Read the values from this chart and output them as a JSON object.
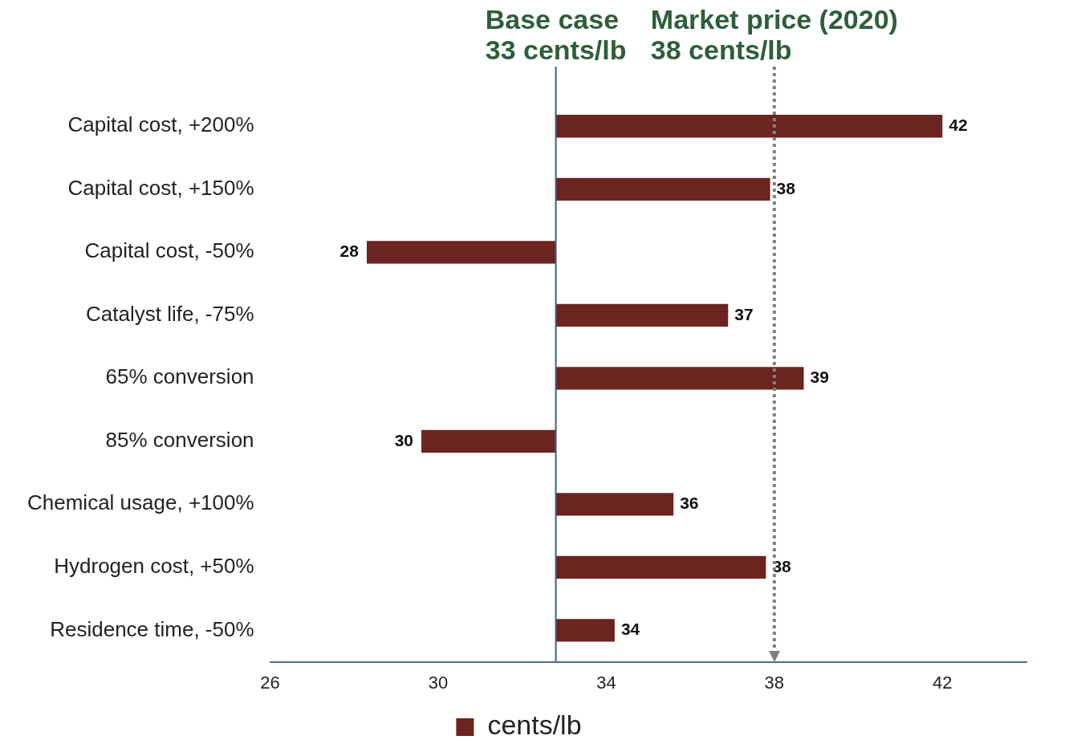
{
  "chart_data": {
    "type": "bar",
    "orientation": "horizontal",
    "categories": [
      "Capital cost, +200%",
      "Capital cost, +150%",
      "Capital cost, -50%",
      "Catalyst life, -75%",
      "65% conversion",
      "85% conversion",
      "Chemical usage, +100%",
      "Hydrogen cost, +50%",
      "Residence time, -50%"
    ],
    "series": [
      {
        "name": "cents/lb",
        "color": "#6b2420",
        "base": [
          32.8,
          32.8,
          32.8,
          32.8,
          32.8,
          32.8,
          32.8,
          32.8,
          32.8
        ],
        "values": [
          9.2,
          5.1,
          -4.5,
          4.1,
          5.9,
          -3.2,
          2.8,
          5.0,
          1.4
        ],
        "value_labels": [
          "42",
          "38",
          "28",
          "37",
          "39",
          "30",
          "36",
          "38",
          "34"
        ]
      }
    ],
    "xlim": [
      26,
      44
    ],
    "xticks": [
      26,
      30,
      34,
      38,
      42
    ],
    "ref_lines": [
      {
        "axis": "x",
        "value": 32.8,
        "label": "Base case\n33 cents/lb",
        "color": "#3d6080",
        "line_style": "solid"
      },
      {
        "axis": "x",
        "value": 38,
        "label": "Market price (2020)\n38 cents/lb",
        "color": "#808080",
        "line_style": "dotted"
      }
    ],
    "grid": false,
    "legend": "bottom"
  }
}
